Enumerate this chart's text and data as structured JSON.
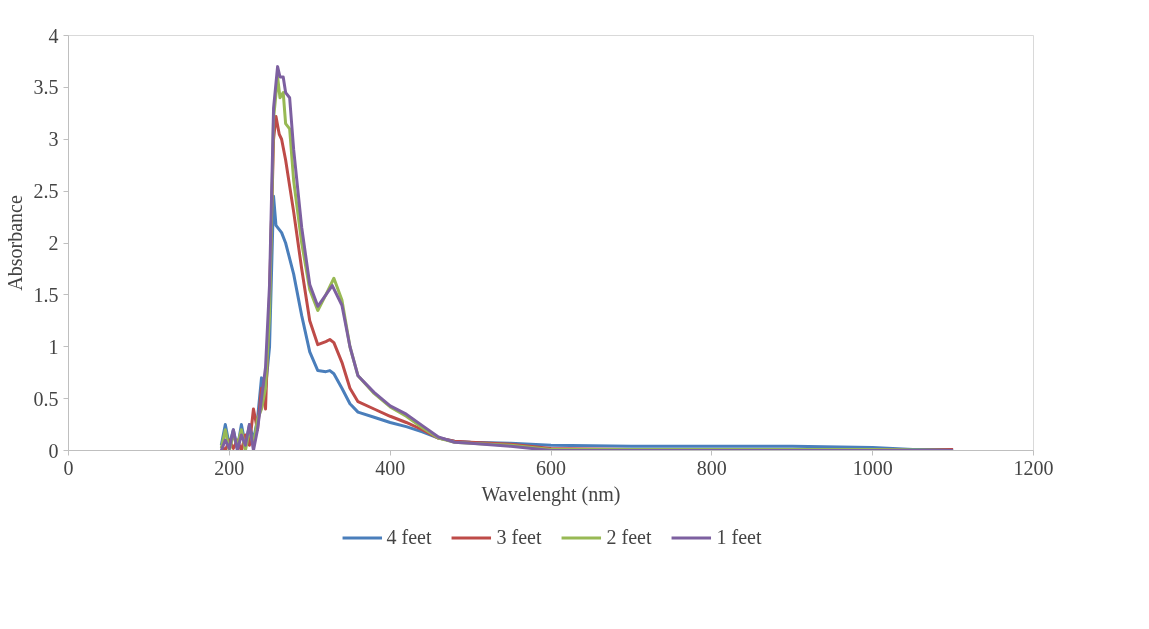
{
  "chart_data": {
    "type": "line",
    "xlabel": "Wavelenght (nm)",
    "ylabel": "Absorbance",
    "xlim": [
      0,
      1200
    ],
    "xticks": [
      0,
      200,
      400,
      600,
      800,
      1000,
      1200
    ],
    "ylim": [
      0,
      4
    ],
    "yticks": [
      0,
      0.5,
      1,
      1.5,
      2,
      2.5,
      3,
      3.5,
      4
    ],
    "grid": false,
    "legend": "bottom",
    "marker": "none",
    "line_style": "solid",
    "series": [
      {
        "name": "4 feet",
        "color": "#4a7ebb",
        "x": [
          190,
          195,
          200,
          205,
          210,
          215,
          220,
          225,
          230,
          235,
          240,
          245,
          250,
          255,
          258,
          265,
          270,
          280,
          290,
          300,
          310,
          320,
          325,
          330,
          340,
          350,
          360,
          380,
          400,
          420,
          440,
          460,
          480,
          500,
          550,
          600,
          700,
          800,
          900,
          1000,
          1050,
          1100
        ],
        "values": [
          0.05,
          0.25,
          0.05,
          0.2,
          0.02,
          0.25,
          0.05,
          0.25,
          0.1,
          0.3,
          0.7,
          0.6,
          1.0,
          2.45,
          2.17,
          2.1,
          2.0,
          1.7,
          1.3,
          0.95,
          0.77,
          0.76,
          0.77,
          0.74,
          0.6,
          0.45,
          0.37,
          0.32,
          0.27,
          0.23,
          0.18,
          0.12,
          0.09,
          0.08,
          0.07,
          0.05,
          0.04,
          0.04,
          0.04,
          0.03,
          0.01,
          0.01
        ]
      },
      {
        "name": "3 feet",
        "color": "#be4b48",
        "x": [
          190,
          195,
          200,
          205,
          210,
          215,
          220,
          225,
          230,
          235,
          240,
          245,
          250,
          255,
          258,
          262,
          265,
          270,
          280,
          290,
          300,
          310,
          320,
          325,
          330,
          340,
          350,
          360,
          380,
          400,
          420,
          440,
          460,
          480,
          500,
          550,
          600,
          700,
          800,
          900,
          1000,
          1050,
          1100
        ],
        "values": [
          0.05,
          0.0,
          0.1,
          0.02,
          0.1,
          0.0,
          0.15,
          0.05,
          0.4,
          0.2,
          0.6,
          0.4,
          1.5,
          3.0,
          3.22,
          3.05,
          3.0,
          2.8,
          2.3,
          1.75,
          1.25,
          1.02,
          1.05,
          1.07,
          1.04,
          0.85,
          0.6,
          0.47,
          0.4,
          0.33,
          0.27,
          0.2,
          0.12,
          0.09,
          0.08,
          0.06,
          0.02,
          0.01,
          0.01,
          0.01,
          0.01,
          0.0,
          0.01
        ]
      },
      {
        "name": "2 feet",
        "color": "#98b954",
        "x": [
          190,
          195,
          200,
          205,
          210,
          215,
          220,
          225,
          230,
          235,
          240,
          245,
          250,
          255,
          260,
          263,
          267,
          270,
          275,
          280,
          290,
          300,
          310,
          320,
          330,
          340,
          350,
          360,
          380,
          400,
          420,
          440,
          460,
          480,
          500,
          550,
          600,
          700,
          800,
          900,
          1000,
          1100
        ],
        "values": [
          0.02,
          0.2,
          0.0,
          0.15,
          0.05,
          0.2,
          0.0,
          0.2,
          0.05,
          0.3,
          0.4,
          0.6,
          1.3,
          3.2,
          3.6,
          3.4,
          3.45,
          3.15,
          3.1,
          2.6,
          2.0,
          1.55,
          1.35,
          1.5,
          1.66,
          1.45,
          1.0,
          0.72,
          0.55,
          0.42,
          0.33,
          0.22,
          0.12,
          0.08,
          0.07,
          0.05,
          0.01,
          0.01,
          0.01,
          0.01,
          0.01,
          0.0
        ]
      },
      {
        "name": "1 feet",
        "color": "#7d60a0",
        "x": [
          190,
          195,
          200,
          205,
          210,
          215,
          220,
          225,
          230,
          235,
          240,
          245,
          250,
          255,
          260,
          263,
          267,
          270,
          275,
          280,
          290,
          300,
          310,
          320,
          328,
          340,
          350,
          360,
          380,
          400,
          420,
          440,
          460,
          480,
          500,
          550,
          600,
          700,
          800,
          900,
          1000,
          1100
        ],
        "values": [
          0.0,
          0.1,
          0.02,
          0.2,
          0.0,
          0.15,
          0.05,
          0.25,
          0.0,
          0.2,
          0.5,
          0.8,
          1.6,
          3.3,
          3.7,
          3.6,
          3.6,
          3.45,
          3.4,
          2.9,
          2.15,
          1.6,
          1.39,
          1.5,
          1.59,
          1.4,
          1.0,
          0.72,
          0.56,
          0.43,
          0.35,
          0.24,
          0.13,
          0.08,
          0.07,
          0.04,
          0.0,
          0.0,
          0.0,
          0.0,
          0.0,
          0.0
        ]
      }
    ]
  }
}
